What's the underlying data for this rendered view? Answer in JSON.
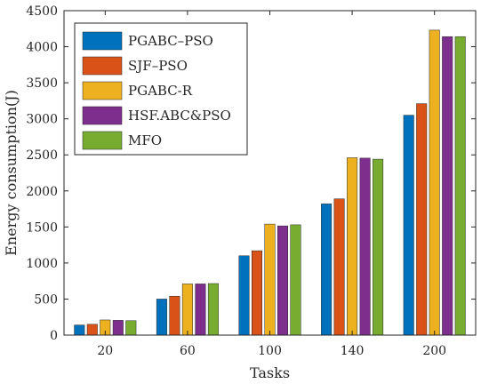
{
  "chart_data": {
    "type": "bar",
    "title": "",
    "xlabel": "Tasks",
    "ylabel": "Energy consumption(J)",
    "categories": [
      "20",
      "60",
      "100",
      "140",
      "200"
    ],
    "ylim": [
      0,
      4500
    ],
    "yticks": [
      0,
      500,
      1000,
      1500,
      2000,
      2500,
      3000,
      3500,
      4000,
      4500
    ],
    "grid": false,
    "legend_position": "top-left",
    "series": [
      {
        "name": "PGABC–PSO",
        "color": "#0072BD",
        "values": [
          140,
          500,
          1100,
          1820,
          3050
        ]
      },
      {
        "name": "SJF–PSO",
        "color": "#D95319",
        "values": [
          150,
          540,
          1170,
          1890,
          3210
        ]
      },
      {
        "name": "PGABC-R",
        "color": "#EDB120",
        "values": [
          210,
          710,
          1540,
          2460,
          4230
        ]
      },
      {
        "name": "HSF.ABC&PSO",
        "color": "#7E2F8E",
        "values": [
          205,
          710,
          1515,
          2455,
          4140
        ]
      },
      {
        "name": "MFO",
        "color": "#77AC30",
        "values": [
          200,
          715,
          1530,
          2440,
          4140
        ]
      }
    ]
  }
}
